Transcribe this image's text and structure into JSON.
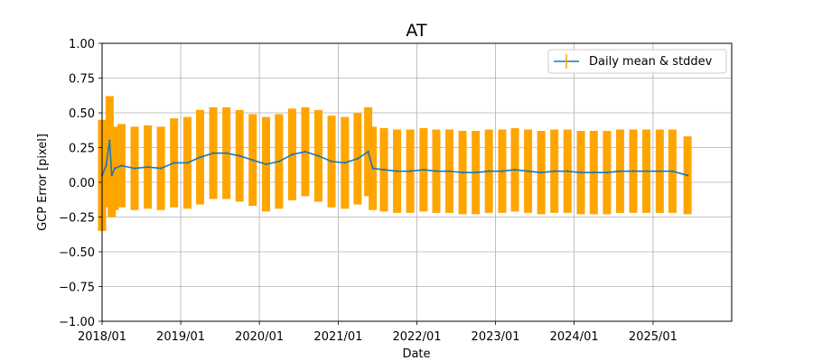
{
  "chart_data": {
    "type": "line",
    "title": "AT",
    "xlabel": "Date",
    "ylabel": "GCP Error [pixel]",
    "x_type": "date",
    "xlim": [
      "2018-01-01",
      "2026-01-01"
    ],
    "ylim": [
      -1.0,
      1.0
    ],
    "grid": true,
    "legend_position": "top-right",
    "x_ticks": [
      "2018/01",
      "2019/01",
      "2020/01",
      "2021/01",
      "2022/01",
      "2023/01",
      "2024/01",
      "2025/01"
    ],
    "x_tick_dates": [
      "2018-01-01",
      "2019-01-01",
      "2020-01-01",
      "2021-01-01",
      "2022-01-01",
      "2023-01-01",
      "2024-01-01",
      "2025-01-01"
    ],
    "y_ticks": [
      "−1.00",
      "−0.75",
      "−0.50",
      "−0.25",
      "0.00",
      "0.25",
      "0.50",
      "0.75",
      "1.00"
    ],
    "y_tick_values": [
      -1.0,
      -0.75,
      -0.5,
      -0.25,
      0.0,
      0.25,
      0.5,
      0.75,
      1.0
    ],
    "colors": {
      "mean": "#1f77b4",
      "stddev": "#ffa500"
    },
    "series": [
      {
        "name": "Daily mean & stddev",
        "style": "errorbar",
        "x": [
          "2018-01-01",
          "2018-01-20",
          "2018-02-05",
          "2018-02-15",
          "2018-03-01",
          "2018-04-01",
          "2018-06-01",
          "2018-08-01",
          "2018-10-01",
          "2018-12-01",
          "2019-02-01",
          "2019-04-01",
          "2019-06-01",
          "2019-08-01",
          "2019-10-01",
          "2019-12-01",
          "2020-02-01",
          "2020-04-01",
          "2020-06-01",
          "2020-08-01",
          "2020-10-01",
          "2020-12-01",
          "2021-02-01",
          "2021-04-01",
          "2021-05-20",
          "2021-06-10",
          "2021-08-01",
          "2021-10-01",
          "2021-12-01",
          "2022-02-01",
          "2022-04-01",
          "2022-06-01",
          "2022-08-01",
          "2022-10-01",
          "2022-12-01",
          "2023-02-01",
          "2023-04-01",
          "2023-06-01",
          "2023-08-01",
          "2023-10-01",
          "2023-12-01",
          "2024-02-01",
          "2024-04-01",
          "2024-06-01",
          "2024-08-01",
          "2024-10-01",
          "2024-12-01",
          "2025-02-01",
          "2025-04-01",
          "2025-06-10"
        ],
        "mean": [
          0.05,
          0.12,
          0.3,
          0.05,
          0.1,
          0.12,
          0.1,
          0.11,
          0.1,
          0.14,
          0.14,
          0.18,
          0.21,
          0.21,
          0.19,
          0.16,
          0.13,
          0.15,
          0.2,
          0.22,
          0.19,
          0.15,
          0.14,
          0.17,
          0.22,
          0.1,
          0.09,
          0.08,
          0.08,
          0.09,
          0.08,
          0.08,
          0.07,
          0.07,
          0.08,
          0.08,
          0.09,
          0.08,
          0.07,
          0.08,
          0.08,
          0.07,
          0.07,
          0.07,
          0.08,
          0.08,
          0.08,
          0.08,
          0.08,
          0.05
        ],
        "stddev": [
          0.4,
          0.3,
          0.32,
          0.3,
          0.3,
          0.3,
          0.3,
          0.3,
          0.3,
          0.32,
          0.33,
          0.34,
          0.33,
          0.33,
          0.33,
          0.33,
          0.34,
          0.34,
          0.33,
          0.32,
          0.33,
          0.33,
          0.33,
          0.33,
          0.32,
          0.3,
          0.3,
          0.3,
          0.3,
          0.3,
          0.3,
          0.3,
          0.3,
          0.3,
          0.3,
          0.3,
          0.3,
          0.3,
          0.3,
          0.3,
          0.3,
          0.3,
          0.3,
          0.3,
          0.3,
          0.3,
          0.3,
          0.3,
          0.3,
          0.28
        ]
      }
    ]
  }
}
